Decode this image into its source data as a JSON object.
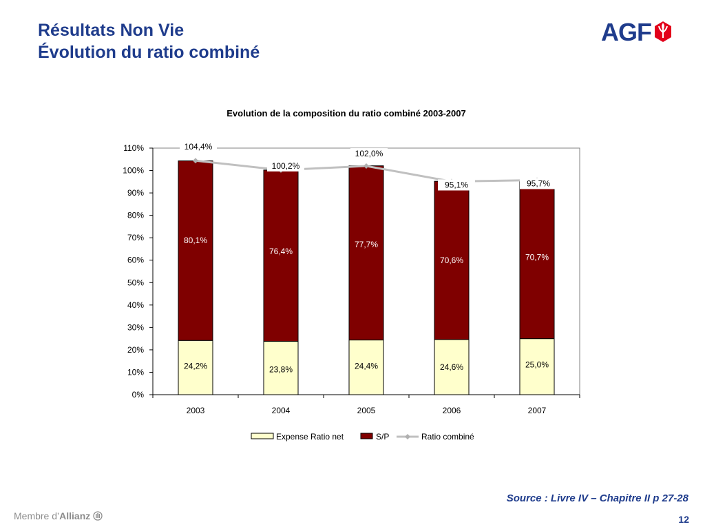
{
  "slide": {
    "title_line1": "Résultats Non Vie",
    "title_line2": "Évolution du ratio combiné",
    "logo_text": "AGF",
    "source": "Source : Livre IV – Chapitre II p 27-28",
    "page_number": "12",
    "member_prefix": "Membre d’",
    "member_brand": "Allianz",
    "colors": {
      "title": "#1f3c8c",
      "sp": "#7f0000",
      "expense": "#ffffcc",
      "line": "#c0c0c0",
      "logo_red": "#e2001a"
    }
  },
  "chart_data": {
    "type": "bar",
    "stacked": true,
    "title": "Evolution de la composition du ratio combiné 2003-2007",
    "categories": [
      "2003",
      "2004",
      "2005",
      "2006",
      "2007"
    ],
    "ylim": [
      0,
      110
    ],
    "yticks": [
      "0%",
      "10%",
      "20%",
      "30%",
      "40%",
      "50%",
      "60%",
      "70%",
      "80%",
      "90%",
      "100%",
      "110%"
    ],
    "series": [
      {
        "name": "Expense Ratio net",
        "type": "bar",
        "color": "#ffffcc",
        "values": [
          24.2,
          23.8,
          24.4,
          24.6,
          25.0
        ],
        "labels": [
          "24,2%",
          "23,8%",
          "24,4%",
          "24,6%",
          "25,0%"
        ]
      },
      {
        "name": "S/P",
        "type": "bar",
        "color": "#7f0000",
        "values": [
          80.1,
          76.4,
          77.7,
          70.6,
          70.7
        ],
        "labels": [
          "80,1%",
          "76,4%",
          "77,7%",
          "70,6%",
          "70,7%"
        ]
      },
      {
        "name": "Ratio combiné",
        "type": "line",
        "color": "#c0c0c0",
        "values": [
          104.4,
          100.2,
          102.0,
          95.1,
          95.7
        ],
        "labels": [
          "104,4%",
          "100,2%",
          "102,0%",
          "95,1%",
          "95,7%"
        ]
      }
    ],
    "legend_position": "bottom",
    "grid": false
  }
}
